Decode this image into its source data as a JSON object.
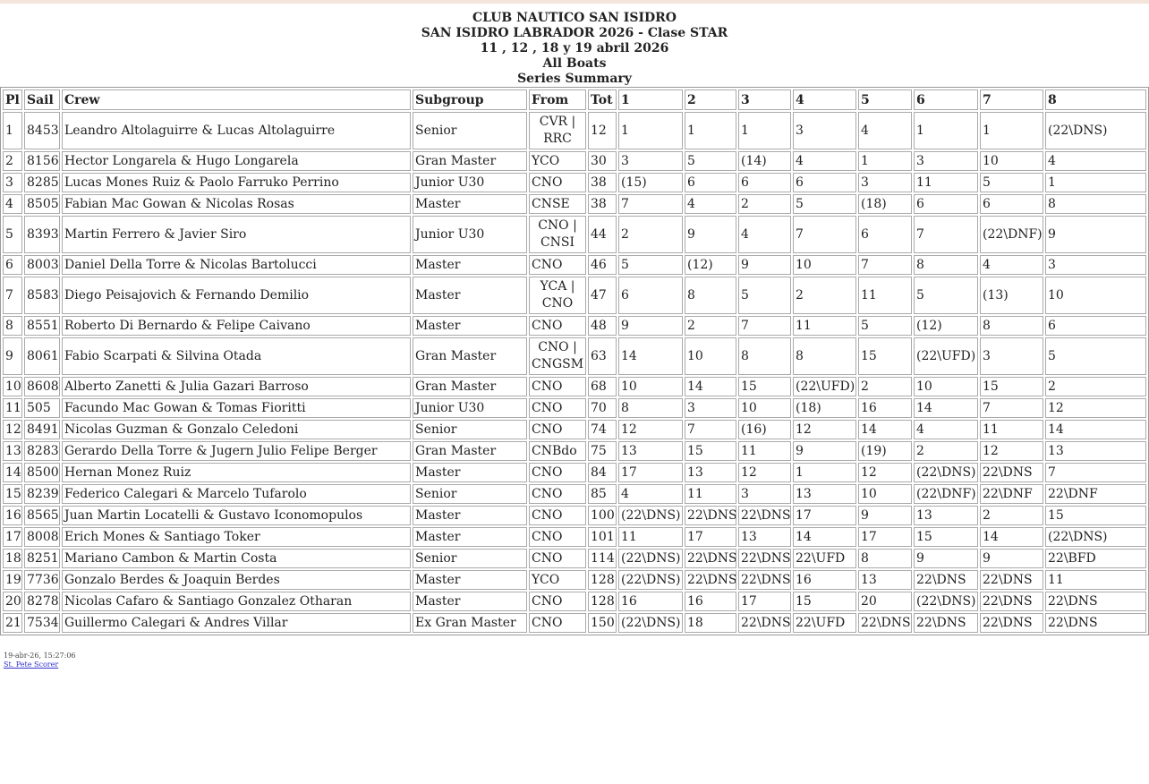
{
  "header": {
    "lines": [
      "CLUB NAUTICO SAN ISIDRO",
      "SAN ISIDRO LABRADOR 2026 - Clase STAR",
      "11 , 12 , 18 y 19 abril 2026",
      "All Boats",
      "Series Summary"
    ]
  },
  "table": {
    "columns": [
      "Pl",
      "Sail",
      "Crew",
      "Subgroup",
      "From",
      "Tot",
      "1",
      "2",
      "3",
      "4",
      "5",
      "6",
      "7",
      "8"
    ],
    "rows": [
      [
        "1",
        "8453",
        "Leandro Altolaguirre & Lucas Altolaguirre",
        "Senior",
        "CVR | RRC",
        "12",
        "1",
        "1",
        "1",
        "3",
        "4",
        "1",
        "1",
        "(22\\DNS)"
      ],
      [
        "2",
        "8156",
        "Hector Longarela & Hugo Longarela",
        "Gran Master",
        "YCO",
        "30",
        "3",
        "5",
        "(14)",
        "4",
        "1",
        "3",
        "10",
        "4"
      ],
      [
        "3",
        "8285",
        "Lucas Mones Ruiz & Paolo Farruko Perrino",
        "Junior U30",
        "CNO",
        "38",
        "(15)",
        "6",
        "6",
        "6",
        "3",
        "11",
        "5",
        "1"
      ],
      [
        "4",
        "8505",
        "Fabian Mac Gowan & Nicolas Rosas",
        "Master",
        "CNSE",
        "38",
        "7",
        "4",
        "2",
        "5",
        "(18)",
        "6",
        "6",
        "8"
      ],
      [
        "5",
        "8393",
        "Martin Ferrero & Javier Siro",
        "Junior U30",
        "CNO | CNSI",
        "44",
        "2",
        "9",
        "4",
        "7",
        "6",
        "7",
        "(22\\DNF)",
        "9"
      ],
      [
        "6",
        "8003",
        "Daniel Della Torre & Nicolas Bartolucci",
        "Master",
        "CNO",
        "46",
        "5",
        "(12)",
        "9",
        "10",
        "7",
        "8",
        "4",
        "3"
      ],
      [
        "7",
        "8583",
        "Diego Peisajovich & Fernando Demilio",
        "Master",
        "YCA | CNO",
        "47",
        "6",
        "8",
        "5",
        "2",
        "11",
        "5",
        "(13)",
        "10"
      ],
      [
        "8",
        "8551",
        "Roberto Di Bernardo & Felipe Caivano",
        "Master",
        "CNO",
        "48",
        "9",
        "2",
        "7",
        "11",
        "5",
        "(12)",
        "8",
        "6"
      ],
      [
        "9",
        "8061",
        "Fabio Scarpati & Silvina Otada",
        "Gran Master",
        "CNO | CNGSM",
        "63",
        "14",
        "10",
        "8",
        "8",
        "15",
        "(22\\UFD)",
        "3",
        "5"
      ],
      [
        "10",
        "8608",
        "Alberto Zanetti & Julia Gazari Barroso",
        "Gran Master",
        "CNO",
        "68",
        "10",
        "14",
        "15",
        "(22\\UFD)",
        "2",
        "10",
        "15",
        "2"
      ],
      [
        "11",
        "505",
        "Facundo Mac Gowan & Tomas Fioritti",
        "Junior U30",
        "CNO",
        "70",
        "8",
        "3",
        "10",
        "(18)",
        "16",
        "14",
        "7",
        "12"
      ],
      [
        "12",
        "8491",
        "Nicolas Guzman & Gonzalo Celedoni",
        "Senior",
        "CNO",
        "74",
        "12",
        "7",
        "(16)",
        "12",
        "14",
        "4",
        "11",
        "14"
      ],
      [
        "13",
        "8283",
        "Gerardo Della Torre & Jugern Julio Felipe Berger",
        "Gran Master",
        "CNBdo",
        "75",
        "13",
        "15",
        "11",
        "9",
        "(19)",
        "2",
        "12",
        "13"
      ],
      [
        "14",
        "8500",
        "Hernan Monez Ruiz",
        "Master",
        "CNO",
        "84",
        "17",
        "13",
        "12",
        "1",
        "12",
        "(22\\DNS)",
        "22\\DNS",
        "7"
      ],
      [
        "15",
        "8239",
        "Federico Calegari & Marcelo Tufarolo",
        "Senior",
        "CNO",
        "85",
        "4",
        "11",
        "3",
        "13",
        "10",
        "(22\\DNF)",
        "22\\DNF",
        "22\\DNF"
      ],
      [
        "16",
        "8565",
        "Juan Martin Locatelli & Gustavo Iconomopulos",
        "Master",
        "CNO",
        "100",
        "(22\\DNS)",
        "22\\DNS",
        "22\\DNS",
        "17",
        "9",
        "13",
        "2",
        "15"
      ],
      [
        "17",
        "8008",
        "Erich Mones & Santiago Toker",
        "Master",
        "CNO",
        "101",
        "11",
        "17",
        "13",
        "14",
        "17",
        "15",
        "14",
        "(22\\DNS)"
      ],
      [
        "18",
        "8251",
        "Mariano Cambon & Martin Costa",
        "Senior",
        "CNO",
        "114",
        "(22\\DNS)",
        "22\\DNS",
        "22\\DNS",
        "22\\UFD",
        "8",
        "9",
        "9",
        "22\\BFD"
      ],
      [
        "19",
        "7736",
        "Gonzalo Berdes & Joaquin Berdes",
        "Master",
        "YCO",
        "128",
        "(22\\DNS)",
        "22\\DNS",
        "22\\DNS",
        "16",
        "13",
        "22\\DNS",
        "22\\DNS",
        "11"
      ],
      [
        "20",
        "8278",
        "Nicolas Cafaro & Santiago Gonzalez Otharan",
        "Master",
        "CNO",
        "128",
        "16",
        "16",
        "17",
        "15",
        "20",
        "(22\\DNS)",
        "22\\DNS",
        "22\\DNS"
      ],
      [
        "21",
        "7534",
        "Guillermo Calegari & Andres Villar",
        "Ex Gran Master",
        "CNO",
        "150",
        "(22\\DNS)",
        "18",
        "22\\DNS",
        "22\\UFD",
        "22\\DNS",
        "22\\DNS",
        "22\\DNS",
        "22\\DNS"
      ]
    ]
  },
  "footer": {
    "timestamp": "19-abr-26, 15:27:06",
    "link": "St. Pete Scorer"
  }
}
